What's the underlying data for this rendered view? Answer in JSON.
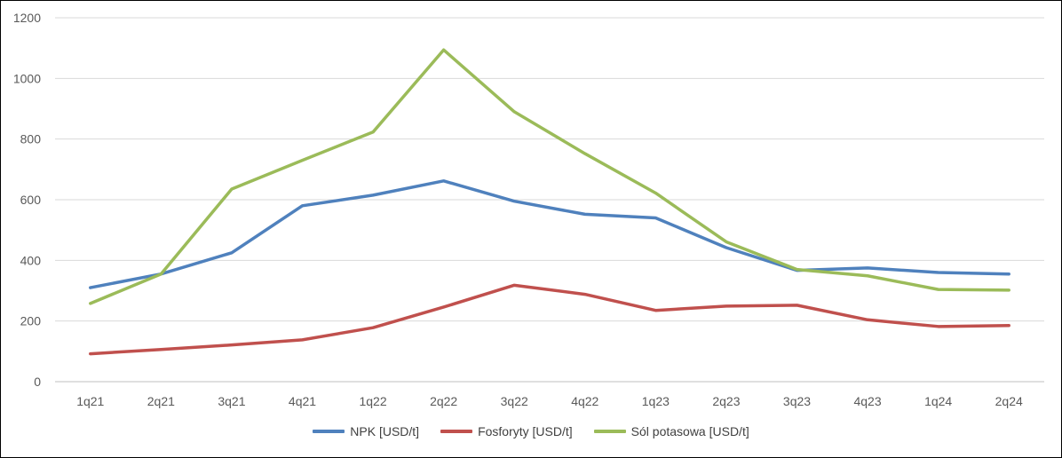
{
  "chart_data": {
    "type": "line",
    "categories": [
      "1q21",
      "2q21",
      "3q21",
      "4q21",
      "1q22",
      "2q22",
      "3q22",
      "4q22",
      "1q23",
      "2q23",
      "3q23",
      "4q23",
      "1q24",
      "2q24"
    ],
    "series": [
      {
        "name": "NPK  [USD/t]",
        "color": "#4f81bd",
        "values": [
          310,
          355,
          425,
          580,
          615,
          662,
          595,
          552,
          540,
          442,
          367,
          375,
          360,
          355
        ]
      },
      {
        "name": "Fosforyty [USD/t]",
        "color": "#c0504d",
        "values": [
          92,
          106,
          121,
          138,
          178,
          246,
          318,
          288,
          235,
          249,
          252,
          204,
          182,
          185
        ]
      },
      {
        "name": "Sól potasowa [USD/t]",
        "color": "#9bbb59",
        "values": [
          258,
          355,
          635,
          730,
          823,
          1094,
          890,
          752,
          622,
          461,
          370,
          349,
          304,
          302
        ]
      }
    ],
    "yticks": [
      "0",
      "200",
      "400",
      "600",
      "800",
      "1000",
      "1200"
    ],
    "ylim": [
      0,
      1200
    ],
    "grid": true,
    "legend_position": "bottom"
  }
}
